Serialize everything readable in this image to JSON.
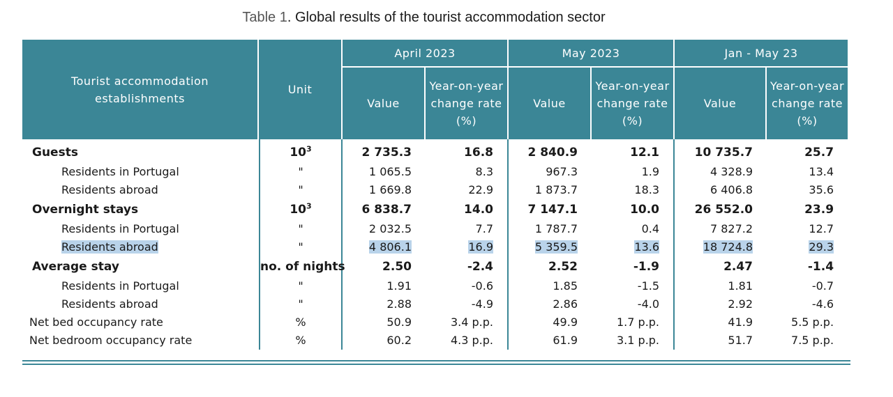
{
  "title": {
    "lead": "Table 1",
    "rest": ". Global results of the tourist accommodation sector"
  },
  "header": {
    "row_label": "Tourist accommodation establishments",
    "unit_label": "Unit",
    "periods": [
      "April 2023",
      "May 2023",
      "Jan - May 23"
    ],
    "value_label": "Value",
    "rate_label": "Year-on-year change rate (%)"
  },
  "rows": [
    {
      "label": "Guests",
      "unit": "10",
      "unit_sup": "3",
      "values": [
        "2 735.3",
        "16.8",
        "2 840.9",
        "12.1",
        "10 735.7",
        "25.7"
      ]
    },
    {
      "label": "Residents in Portugal",
      "unit": "\"",
      "values": [
        "1 065.5",
        "8.3",
        "967.3",
        "1.9",
        "4 328.9",
        "13.4"
      ]
    },
    {
      "label": "Residents abroad",
      "unit": "\"",
      "values": [
        "1 669.8",
        "22.9",
        "1 873.7",
        "18.3",
        "6 406.8",
        "35.6"
      ]
    },
    {
      "label": "Overnight stays",
      "unit": "10",
      "unit_sup": "3",
      "values": [
        "6 838.7",
        "14.0",
        "7 147.1",
        "10.0",
        "26 552.0",
        "23.9"
      ]
    },
    {
      "label": "Residents in Portugal",
      "unit": "\"",
      "values": [
        "2 032.5",
        "7.7",
        "1 787.7",
        "0.4",
        "7 827.2",
        "12.7"
      ]
    },
    {
      "label": "Residents abroad",
      "unit": "\"",
      "values": [
        "4 806.1",
        "16.9",
        "5 359.5",
        "13.6",
        "18 724.8",
        "29.3"
      ]
    },
    {
      "label": "Average stay",
      "unit": "no. of nights",
      "values": [
        "2.50",
        "-2.4",
        "2.52",
        "-1.9",
        "2.47",
        "-1.4"
      ]
    },
    {
      "label": "Residents in Portugal",
      "unit": "\"",
      "values": [
        "1.91",
        "-0.6",
        "1.85",
        "-1.5",
        "1.81",
        "-0.7"
      ]
    },
    {
      "label": "Residents abroad",
      "unit": "\"",
      "values": [
        "2.88",
        "-4.9",
        "2.86",
        "-4.0",
        "2.92",
        "-4.6"
      ]
    },
    {
      "label": "Net bed occupancy rate",
      "unit": "%",
      "values": [
        "50.9",
        "3.4 p.p.",
        "49.9",
        "1.7 p.p.",
        "41.9",
        "5.5 p.p."
      ]
    },
    {
      "label": "Net bedroom occupancy rate",
      "unit": "%",
      "values": [
        "60.2",
        "4.3 p.p.",
        "61.9",
        "3.1 p.p.",
        "51.7",
        "7.5 p.p."
      ]
    }
  ],
  "colors": {
    "header_bg": "#3b8696",
    "highlight": "#b9d3ea"
  }
}
